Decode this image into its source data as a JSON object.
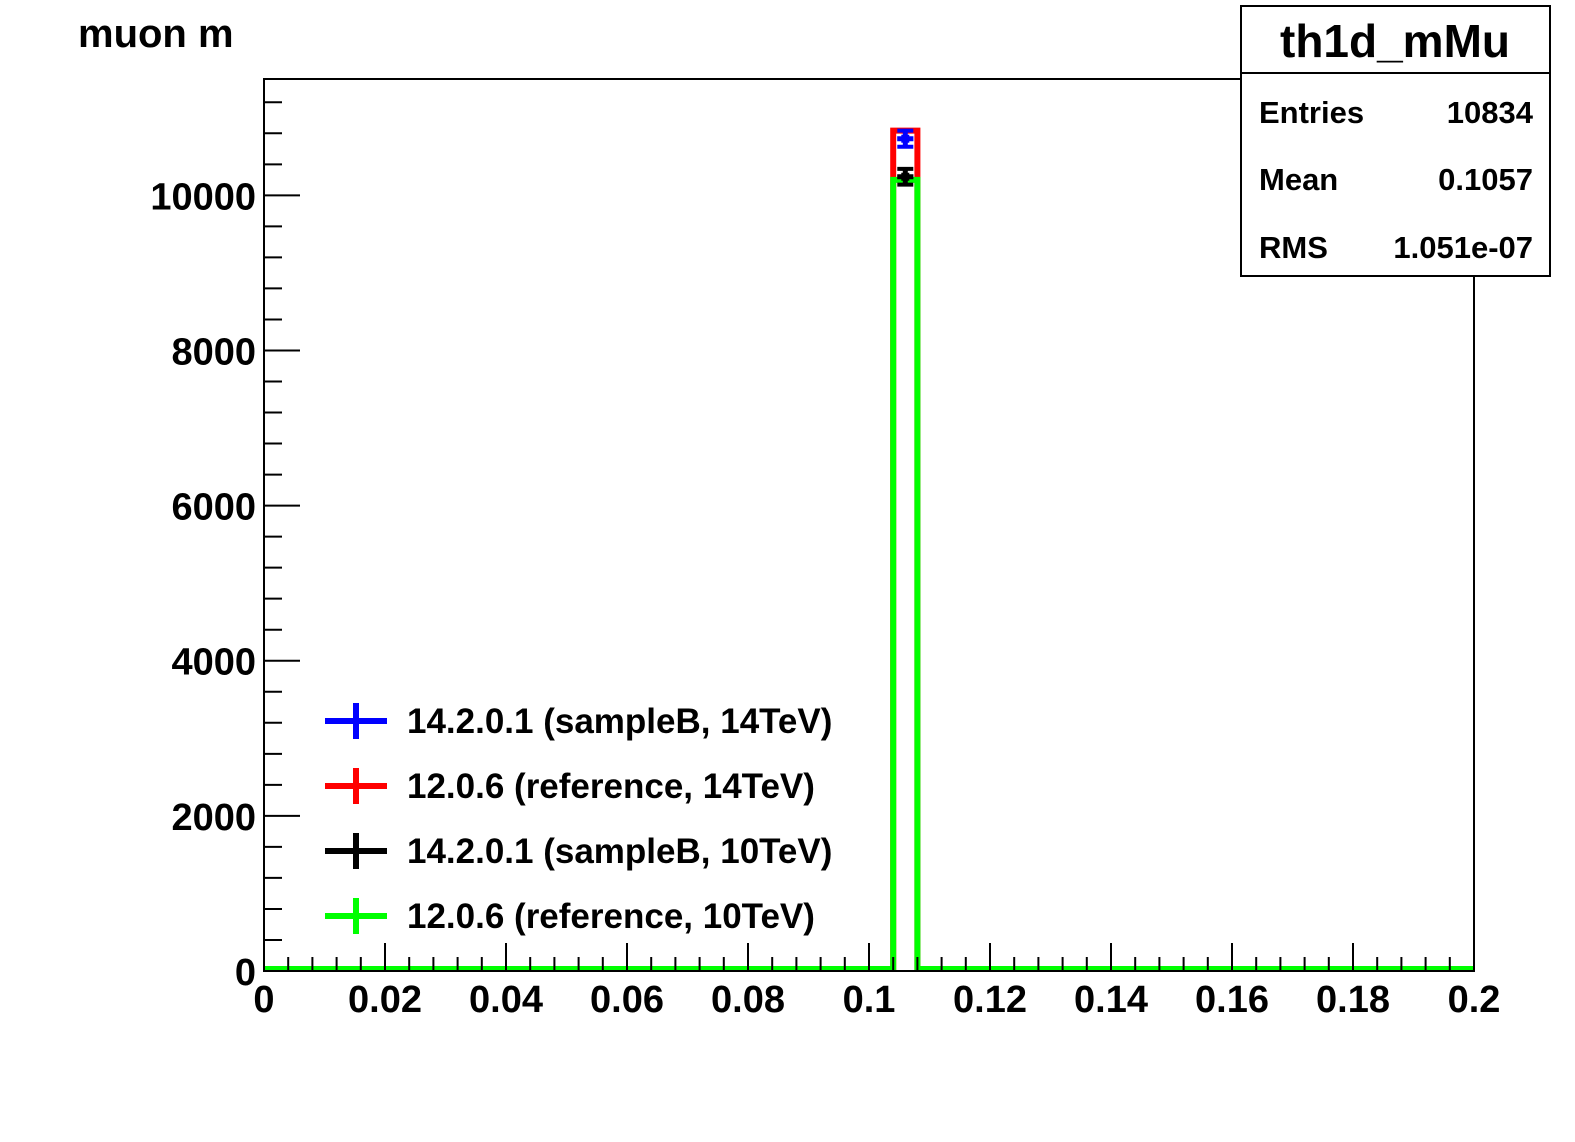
{
  "chart_data": {
    "type": "bar",
    "title": "muon m",
    "xlabel": "",
    "ylabel": "",
    "xlim": [
      0,
      0.2
    ],
    "ylim": [
      0,
      11500
    ],
    "x_ticks": [
      0,
      0.02,
      0.04,
      0.06,
      0.08,
      0.1,
      0.12,
      0.14,
      0.16,
      0.18,
      0.2
    ],
    "x_tick_labels": [
      "0",
      "0.02",
      "0.04",
      "0.06",
      "0.08",
      "0.1",
      "0.12",
      "0.14",
      "0.16",
      "0.18",
      "0.2"
    ],
    "y_ticks": [
      0,
      2000,
      4000,
      6000,
      8000,
      10000
    ],
    "y_tick_labels": [
      "0",
      "2000",
      "4000",
      "6000",
      "8000",
      "10000"
    ],
    "bin": {
      "low": 0.104,
      "high": 0.108
    },
    "series": [
      {
        "name": "14.2.0.1 (sampleB, 14TeV)",
        "color": "#0000ff",
        "value": 10730,
        "error": 104,
        "style": "markers"
      },
      {
        "name": "12.0.6 (reference, 14TeV)",
        "color": "#ff0000",
        "value": 10834,
        "error": 104,
        "style": "histogram"
      },
      {
        "name": "14.2.0.1 (sampleB, 10TeV)",
        "color": "#000000",
        "value": 10240,
        "error": 101,
        "style": "markers"
      },
      {
        "name": "12.0.6 (reference, 10TeV)",
        "color": "#00ff00",
        "value": 10200,
        "error": 101,
        "style": "histogram"
      }
    ],
    "legend_position": "bottom-left",
    "grid": false
  },
  "stats_box": {
    "name": "th1d_mMu",
    "rows": [
      {
        "label": "Entries",
        "value": "10834"
      },
      {
        "label": "Mean",
        "value": "0.1057"
      },
      {
        "label": "RMS",
        "value": "1.051e-07"
      }
    ]
  }
}
